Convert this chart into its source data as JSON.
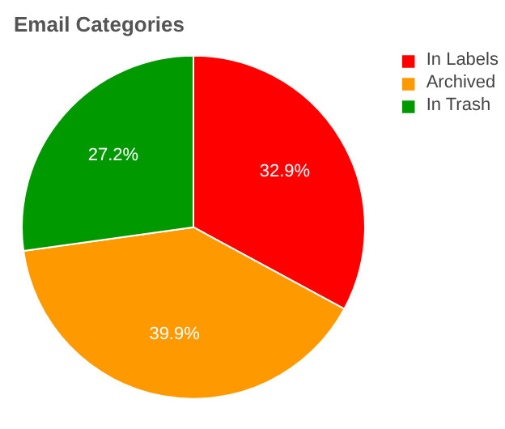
{
  "chart_data": {
    "type": "pie",
    "title": "Email Categories",
    "categories": [
      "In Labels",
      "Archived",
      "In Trash"
    ],
    "values": [
      32.9,
      39.9,
      27.2
    ],
    "colors": [
      "#ff0000",
      "#ff9900",
      "#009900"
    ],
    "value_labels": [
      "32.9%",
      "39.9%",
      "27.2%"
    ],
    "legend": "top right"
  }
}
